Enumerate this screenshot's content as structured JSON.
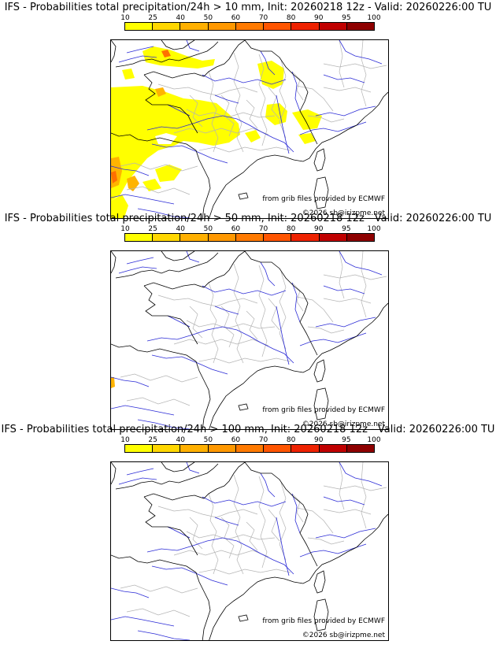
{
  "scale": {
    "labels": [
      "10",
      "25",
      "40",
      "50",
      "60",
      "70",
      "80",
      "90",
      "95",
      "100"
    ],
    "colors": [
      "#ffff00",
      "#ffd700",
      "#ffb000",
      "#ff9800",
      "#ff7a00",
      "#ff5500",
      "#ee2200",
      "#c00000",
      "#8e0000",
      "#5c0000"
    ]
  },
  "colors": {
    "coast": "#000000",
    "rivers": "#2b2bd6",
    "borders": "#b4b4b4",
    "low_prob": "#ffff00",
    "mid_prob": "#ffb400",
    "high_prob": "#ff7000"
  },
  "panels": [
    {
      "title": "IFS - Probabilities total precipitation/24h > 10 mm, Init: 20260218 12z - Valid: 20260226:00 TU",
      "credit_source": "from grib files provided by ECMWF",
      "credit_copyright": "©2026 sb@irizpme.net",
      "field": "heavy"
    },
    {
      "title": "IFS - Probabilities total precipitation/24h > 50 mm, Init: 20260218 12z - Valid: 20260226:00 TU",
      "credit_source": "from grib files provided by ECMWF",
      "credit_copyright": "©2026 sb@irizpme.net",
      "field": "light"
    },
    {
      "title": "IFS - Probabilities total precipitation/24h > 100 mm, Init: 20260218 12z - Valid: 20260226:00 TU",
      "credit_source": "from grib files provided by ECMWF",
      "credit_copyright": "©2026 sb@irizpme.net",
      "field": "none"
    }
  ]
}
